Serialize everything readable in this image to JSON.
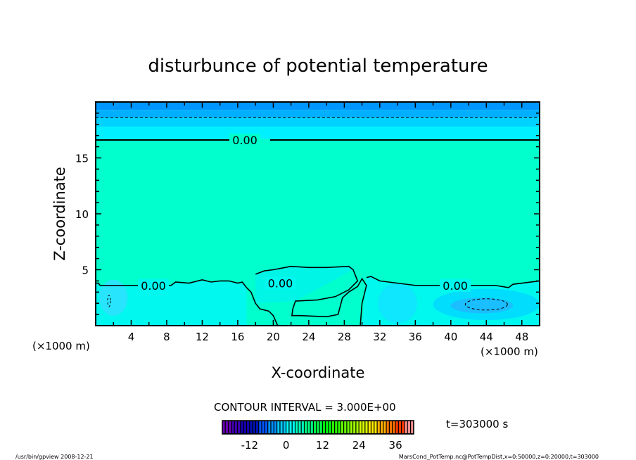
{
  "chart_data": {
    "type": "heatmap",
    "title": "disturbunce of potential temperature",
    "xlabel": "X-coordinate",
    "ylabel": "Z-coordinate",
    "x_unit_label": "(×1000 m)",
    "z_unit_label": "(×1000 m)",
    "xlim": [
      0,
      50
    ],
    "ylim": [
      0,
      20
    ],
    "xticks": [
      4,
      8,
      12,
      16,
      20,
      24,
      28,
      32,
      36,
      40,
      44,
      48
    ],
    "yticks": [
      5,
      10,
      15
    ],
    "contour_interval_label": "CONTOUR INTERVAL = 3.000E+00",
    "contour_labels": [
      "0.00",
      "0.00",
      "0.00",
      "0.00"
    ],
    "time_label": "t=303000 s",
    "colorbar": {
      "min": -21,
      "max": 42,
      "step": 3,
      "tick_labels": [
        "-12",
        "0",
        "12",
        "24",
        "36"
      ],
      "tick_values": [
        -12,
        0,
        12,
        24,
        36
      ]
    },
    "bands": [
      {
        "z0": 19.3,
        "z1": 20,
        "color": "#0096ff"
      },
      {
        "z0": 18.6,
        "z1": 19.3,
        "color": "#00b0ff"
      },
      {
        "z0": 17.8,
        "z1": 18.6,
        "color": "#00d2ff"
      },
      {
        "z0": 16.7,
        "z1": 17.8,
        "color": "#00f0ff"
      },
      {
        "z0": 0,
        "z1": 16.7,
        "color": "#00ffcc"
      }
    ],
    "zero_contour_upper_z": 16.6,
    "dashed_contour_z": 18.6,
    "lower_region_color": "#00f8ee",
    "cool_patches": [
      {
        "x": 2,
        "z": 2.5,
        "rx": 1.6,
        "rz": 1.6,
        "color": "#30e0ff"
      },
      {
        "x": 44,
        "z": 1.9,
        "rx": 6,
        "rz": 1.4,
        "color": "#00d8ff"
      },
      {
        "x": 43.5,
        "z": 1.8,
        "rx": 3.5,
        "rz": 0.7,
        "color": "#20b8ff"
      },
      {
        "x": 34,
        "z": 2.0,
        "rx": 2.2,
        "rz": 1.8,
        "color": "#10e4ff"
      }
    ],
    "zero_contour_lower": [
      [
        0,
        3.8
      ],
      [
        0.3,
        3.8
      ],
      [
        0.5,
        3.6
      ],
      [
        5,
        3.6
      ],
      [
        8.5,
        3.6
      ],
      [
        9,
        3.9
      ],
      [
        10.5,
        3.8
      ],
      [
        12,
        4.1
      ],
      [
        13,
        3.9
      ],
      [
        14,
        4.0
      ],
      [
        15,
        4.0
      ],
      [
        16,
        3.8
      ],
      [
        16.5,
        3.9
      ],
      [
        17,
        3.4
      ],
      [
        17.5,
        3.0
      ],
      [
        18,
        2.0
      ],
      [
        18.5,
        1.5
      ],
      [
        19.5,
        1.3
      ],
      [
        20,
        0.9
      ],
      [
        20.5,
        0
      ]
    ],
    "zero_contour_middle": [
      [
        18,
        4.6
      ],
      [
        19,
        4.9
      ],
      [
        20,
        5.0
      ],
      [
        22,
        5.3
      ],
      [
        24,
        5.2
      ],
      [
        26,
        5.2
      ],
      [
        28.5,
        5.3
      ],
      [
        29,
        5.0
      ],
      [
        29.5,
        4.0
      ],
      [
        28.5,
        3.2
      ],
      [
        27,
        2.6
      ],
      [
        25,
        2.3
      ],
      [
        22.5,
        2.2
      ],
      [
        22.2,
        1.5
      ],
      [
        22.1,
        0.9
      ],
      [
        23,
        0.9
      ],
      [
        26,
        0.8
      ],
      [
        27.3,
        1.0
      ],
      [
        27.8,
        2.5
      ],
      [
        28.5,
        3.0
      ],
      [
        29.5,
        3.5
      ],
      [
        30,
        4.2
      ],
      [
        30.5,
        3.6
      ],
      [
        30,
        2.0
      ],
      [
        29.8,
        0
      ]
    ],
    "zero_contour_right": [
      [
        30.5,
        4.3
      ],
      [
        31,
        4.4
      ],
      [
        32,
        4.0
      ],
      [
        33,
        3.9
      ],
      [
        36,
        3.6
      ],
      [
        38,
        3.6
      ],
      [
        42,
        3.6
      ],
      [
        45,
        3.6
      ],
      [
        46.5,
        3.4
      ],
      [
        47,
        3.7
      ],
      [
        50,
        4.0
      ]
    ],
    "footer_left": "/usr/bin/gpview   2008-12-21",
    "footer_right": "MarsCond_PotTemp.nc@PotTempDist,x=0:50000,z=0:20000,t=303000"
  }
}
